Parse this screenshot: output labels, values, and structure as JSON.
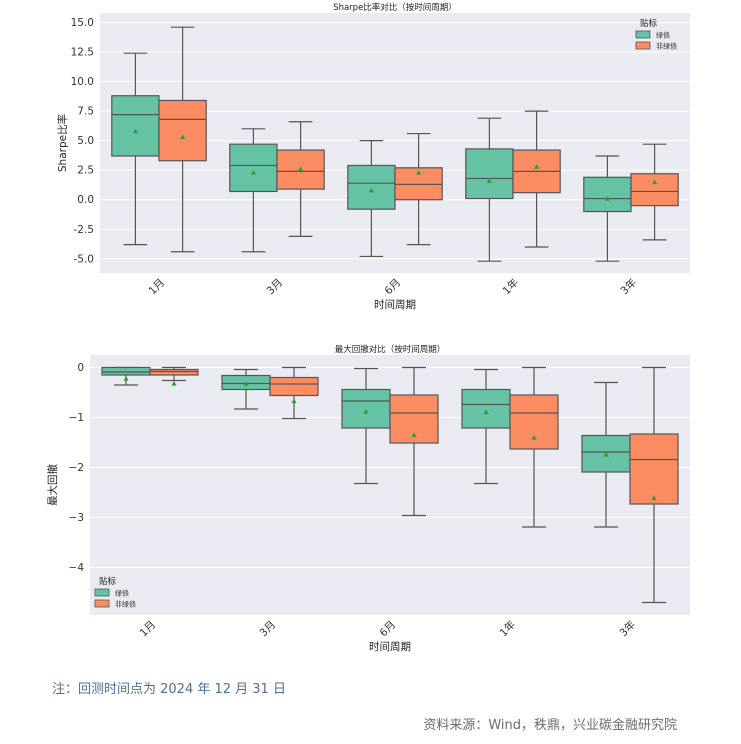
{
  "chart_data": [
    {
      "type": "box",
      "title": "Sharpe比率对比（按时间周期）",
      "xlabel": "时间周期",
      "ylabel": "Sharpe比率",
      "ylim": [
        -6.2,
        15.8
      ],
      "yticks": [
        15.0,
        12.5,
        10.0,
        7.5,
        5.0,
        2.5,
        0.0,
        -2.5,
        -5.0
      ],
      "ytick_labels": [
        "15.0",
        "12.5",
        "10.0",
        "7.5",
        "5.0",
        "2.5",
        "0.0",
        "-2.5",
        "-5.0"
      ],
      "categories": [
        "1月",
        "3月",
        "6月",
        "1年",
        "3年"
      ],
      "grid": true,
      "legend": {
        "title": "贴标",
        "placement": "top-right"
      },
      "series": [
        {
          "name": "绿债",
          "color": "#66c2a5",
          "boxes": [
            {
              "whislo": -3.8,
              "q1": 3.7,
              "med": 7.2,
              "q3": 8.8,
              "whishi": 12.4,
              "mean": 5.8
            },
            {
              "whislo": -4.4,
              "q1": 0.7,
              "med": 2.9,
              "q3": 4.7,
              "whishi": 6.0,
              "mean": 2.3
            },
            {
              "whislo": -4.8,
              "q1": -0.8,
              "med": 1.4,
              "q3": 2.9,
              "whishi": 5.0,
              "mean": 0.8
            },
            {
              "whislo": -5.2,
              "q1": 0.1,
              "med": 1.8,
              "q3": 4.3,
              "whishi": 6.9,
              "mean": 1.6
            },
            {
              "whislo": -5.2,
              "q1": -1.0,
              "med": 0.1,
              "q3": 1.9,
              "whishi": 3.7,
              "mean": 0.1
            }
          ]
        },
        {
          "name": "非绿债",
          "color": "#fc8d62",
          "boxes": [
            {
              "whislo": -4.4,
              "q1": 3.3,
              "med": 6.8,
              "q3": 8.4,
              "whishi": 14.6,
              "mean": 5.3
            },
            {
              "whislo": -3.1,
              "q1": 0.9,
              "med": 2.4,
              "q3": 4.2,
              "whishi": 6.6,
              "mean": 2.6
            },
            {
              "whislo": -3.8,
              "q1": 0.0,
              "med": 1.3,
              "q3": 2.7,
              "whishi": 5.6,
              "mean": 2.3
            },
            {
              "whislo": -4.0,
              "q1": 0.6,
              "med": 2.4,
              "q3": 4.2,
              "whishi": 7.5,
              "mean": 2.8
            },
            {
              "whislo": -3.4,
              "q1": -0.5,
              "med": 0.7,
              "q3": 2.2,
              "whishi": 4.7,
              "mean": 1.5
            }
          ]
        }
      ]
    },
    {
      "type": "box",
      "title": "最大回撤对比（按时间周期）",
      "xlabel": "时间周期",
      "ylabel": "最大回撤",
      "ylim": [
        -4.95,
        0.25
      ],
      "yticks": [
        0,
        -1,
        -2,
        -3,
        -4
      ],
      "ytick_labels": [
        "0",
        "−1",
        "−2",
        "−3",
        "−4"
      ],
      "categories": [
        "1月",
        "3月",
        "6月",
        "1年",
        "3年"
      ],
      "grid": true,
      "legend": {
        "title": "贴标",
        "placement": "bottom-left"
      },
      "series": [
        {
          "name": "绿债",
          "color": "#66c2a5",
          "boxes": [
            {
              "whislo": -0.35,
              "q1": -0.15,
              "med": -0.09,
              "q3": 0.0,
              "whishi": 0.0,
              "mean": -0.22
            },
            {
              "whislo": -0.83,
              "q1": -0.44,
              "med": -0.32,
              "q3": -0.16,
              "whishi": -0.04,
              "mean": -0.32
            },
            {
              "whislo": -2.32,
              "q1": -1.21,
              "med": -0.67,
              "q3": -0.44,
              "whishi": -0.02,
              "mean": -0.88
            },
            {
              "whislo": -2.32,
              "q1": -1.21,
              "med": -0.74,
              "q3": -0.44,
              "whishi": -0.04,
              "mean": -0.89
            },
            {
              "whislo": -3.19,
              "q1": -2.09,
              "med": -1.69,
              "q3": -1.36,
              "whishi": -0.3,
              "mean": -1.74
            }
          ]
        },
        {
          "name": "非绿债",
          "color": "#fc8d62",
          "boxes": [
            {
              "whislo": -0.26,
              "q1": -0.15,
              "med": -0.08,
              "q3": -0.04,
              "whishi": 0.0,
              "mean": -0.32
            },
            {
              "whislo": -1.02,
              "q1": -0.56,
              "med": -0.33,
              "q3": -0.2,
              "whishi": 0.0,
              "mean": -0.67
            },
            {
              "whislo": -2.96,
              "q1": -1.51,
              "med": -0.91,
              "q3": -0.55,
              "whishi": 0.0,
              "mean": -1.35
            },
            {
              "whislo": -3.19,
              "q1": -1.63,
              "med": -0.91,
              "q3": -0.55,
              "whishi": 0.0,
              "mean": -1.4
            },
            {
              "whislo": -4.7,
              "q1": -2.73,
              "med": -1.84,
              "q3": -1.33,
              "whishi": 0.0,
              "mean": -2.61
            }
          ]
        }
      ]
    }
  ],
  "footer": {
    "note": "注：回测时间点为 2024 年 12 月 31 日",
    "source": "资料来源：Wind，秩鼎，兴业碳金融研究院"
  }
}
